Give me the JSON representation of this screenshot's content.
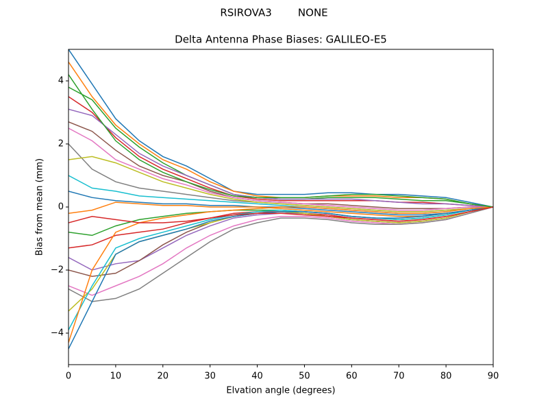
{
  "chart_data": {
    "type": "line",
    "suptitle": "RSIROVA3        NONE",
    "title": "Delta Antenna Phase Biases: GALILEO-E5",
    "xlabel": "Elvation angle (degrees)",
    "ylabel": "Bias from mean (mm)",
    "x": [
      0,
      5,
      10,
      15,
      20,
      25,
      30,
      35,
      40,
      45,
      50,
      55,
      60,
      65,
      70,
      75,
      80,
      85,
      90
    ],
    "xlim": [
      0,
      90
    ],
    "xticks": [
      0,
      10,
      20,
      30,
      40,
      50,
      60,
      70,
      80,
      90
    ],
    "ylim": [
      -5,
      5
    ],
    "yticks": [
      {
        "value": -4,
        "label": "−4"
      },
      {
        "value": -2,
        "label": "−2"
      },
      0,
      2,
      4
    ],
    "series": [
      {
        "color": "#1f77b4",
        "values": [
          5.0,
          3.9,
          2.8,
          2.1,
          1.6,
          1.3,
          0.9,
          0.5,
          0.4,
          0.4,
          0.4,
          0.45,
          0.45,
          0.4,
          0.4,
          0.35,
          0.3,
          0.15,
          0
        ]
      },
      {
        "color": "#ff7f0e",
        "values": [
          4.6,
          3.5,
          2.6,
          2.0,
          1.5,
          1.2,
          0.8,
          0.5,
          0.35,
          0.3,
          0.3,
          0.35,
          0.35,
          0.35,
          0.3,
          0.3,
          0.25,
          0.1,
          0
        ]
      },
      {
        "color": "#2ca02c",
        "values": [
          3.8,
          3.4,
          2.5,
          1.9,
          1.4,
          1.0,
          0.7,
          0.4,
          0.3,
          0.25,
          0.25,
          0.3,
          0.3,
          0.3,
          0.25,
          0.2,
          0.2,
          0.1,
          0
        ]
      },
      {
        "color": "#d62728",
        "values": [
          3.5,
          3.0,
          2.2,
          1.6,
          1.2,
          0.9,
          0.6,
          0.35,
          0.25,
          0.2,
          0.2,
          0.2,
          0.2,
          0.2,
          0.15,
          0.15,
          0.1,
          0.05,
          0
        ]
      },
      {
        "color": "#9467bd",
        "values": [
          3.1,
          2.9,
          2.3,
          1.7,
          1.3,
          1.0,
          0.7,
          0.4,
          0.3,
          0.25,
          0.25,
          0.25,
          0.25,
          0.2,
          0.15,
          0.1,
          0.1,
          0.05,
          0
        ]
      },
      {
        "color": "#8c564b",
        "values": [
          2.7,
          2.4,
          1.8,
          1.3,
          1.0,
          0.8,
          0.5,
          0.3,
          0.2,
          0.15,
          0.1,
          0.1,
          0.05,
          0.0,
          -0.05,
          -0.05,
          -0.05,
          0,
          0
        ]
      },
      {
        "color": "#e377c2",
        "values": [
          2.5,
          2.1,
          1.5,
          1.2,
          0.9,
          0.7,
          0.45,
          0.3,
          0.2,
          0.15,
          0.1,
          0.05,
          0,
          -0.05,
          -0.1,
          -0.1,
          -0.05,
          0,
          0
        ]
      },
      {
        "color": "#7f7f7f",
        "values": [
          2.0,
          1.2,
          0.8,
          0.6,
          0.5,
          0.4,
          0.3,
          0.2,
          0.15,
          0.1,
          0.05,
          0,
          -0.05,
          -0.1,
          -0.15,
          -0.15,
          -0.1,
          -0.05,
          0
        ]
      },
      {
        "color": "#bcbd22",
        "values": [
          1.5,
          1.6,
          1.4,
          1.1,
          0.8,
          0.6,
          0.4,
          0.25,
          0.15,
          0.1,
          0.05,
          0,
          -0.05,
          -0.1,
          -0.15,
          -0.15,
          -0.1,
          -0.05,
          0
        ]
      },
      {
        "color": "#17becf",
        "values": [
          1.0,
          0.6,
          0.5,
          0.35,
          0.3,
          0.25,
          0.2,
          0.15,
          0.1,
          0.05,
          0,
          -0.05,
          -0.1,
          -0.15,
          -0.2,
          -0.2,
          -0.15,
          -0.05,
          0
        ]
      },
      {
        "color": "#1f77b4",
        "values": [
          0.5,
          0.3,
          0.2,
          0.15,
          0.1,
          0.1,
          0.05,
          0.05,
          0,
          0,
          -0.05,
          -0.1,
          -0.15,
          -0.2,
          -0.25,
          -0.25,
          -0.2,
          -0.1,
          0
        ]
      },
      {
        "color": "#ff7f0e",
        "values": [
          -0.2,
          -0.1,
          0.15,
          0.1,
          0.05,
          0.05,
          0,
          0,
          0,
          -0.05,
          -0.1,
          -0.15,
          -0.2,
          -0.25,
          -0.3,
          -0.3,
          -0.2,
          -0.1,
          0
        ]
      },
      {
        "color": "#2ca02c",
        "values": [
          -0.8,
          -0.9,
          -0.6,
          -0.4,
          -0.3,
          -0.2,
          -0.15,
          -0.1,
          -0.1,
          -0.1,
          -0.15,
          -0.2,
          -0.3,
          -0.35,
          -0.4,
          -0.35,
          -0.25,
          -0.1,
          0
        ]
      },
      {
        "color": "#d62728",
        "values": [
          -1.3,
          -1.2,
          -0.9,
          -0.8,
          -0.7,
          -0.5,
          -0.35,
          -0.2,
          -0.15,
          -0.15,
          -0.2,
          -0.25,
          -0.35,
          -0.4,
          -0.45,
          -0.4,
          -0.3,
          -0.15,
          0
        ]
      },
      {
        "color": "#9467bd",
        "values": [
          -1.6,
          -2.0,
          -1.8,
          -1.7,
          -1.3,
          -0.9,
          -0.6,
          -0.35,
          -0.25,
          -0.2,
          -0.2,
          -0.3,
          -0.4,
          -0.45,
          -0.5,
          -0.45,
          -0.35,
          -0.15,
          0
        ]
      },
      {
        "color": "#8c564b",
        "values": [
          -2.0,
          -2.2,
          -2.1,
          -1.7,
          -1.2,
          -0.8,
          -0.5,
          -0.3,
          -0.2,
          -0.15,
          -0.2,
          -0.3,
          -0.4,
          -0.45,
          -0.5,
          -0.45,
          -0.35,
          -0.15,
          0
        ]
      },
      {
        "color": "#e377c2",
        "values": [
          -2.5,
          -2.8,
          -2.5,
          -2.2,
          -1.8,
          -1.3,
          -0.9,
          -0.6,
          -0.4,
          -0.3,
          -0.3,
          -0.35,
          -0.45,
          -0.5,
          -0.55,
          -0.5,
          -0.4,
          -0.2,
          0
        ]
      },
      {
        "color": "#7f7f7f",
        "values": [
          -2.6,
          -3.0,
          -2.9,
          -2.6,
          -2.1,
          -1.6,
          -1.1,
          -0.7,
          -0.5,
          -0.35,
          -0.35,
          -0.4,
          -0.5,
          -0.55,
          -0.55,
          -0.5,
          -0.4,
          -0.2,
          0
        ]
      },
      {
        "color": "#bcbd22",
        "values": [
          -3.3,
          -2.6,
          -1.5,
          -1.1,
          -0.9,
          -0.7,
          -0.5,
          -0.3,
          -0.2,
          -0.15,
          -0.2,
          -0.3,
          -0.4,
          -0.45,
          -0.5,
          -0.45,
          -0.35,
          -0.15,
          0
        ]
      },
      {
        "color": "#17becf",
        "values": [
          -3.9,
          -2.5,
          -1.3,
          -1.0,
          -0.8,
          -0.6,
          -0.4,
          -0.25,
          -0.15,
          -0.1,
          -0.15,
          -0.2,
          -0.3,
          -0.35,
          -0.4,
          -0.35,
          -0.25,
          -0.1,
          0
        ]
      },
      {
        "color": "#1f77b4",
        "values": [
          -4.5,
          -3.0,
          -1.5,
          -1.1,
          -0.9,
          -0.7,
          -0.45,
          -0.3,
          -0.2,
          -0.15,
          -0.15,
          -0.2,
          -0.3,
          -0.35,
          -0.35,
          -0.3,
          -0.2,
          -0.1,
          0
        ]
      },
      {
        "color": "#ff7f0e",
        "values": [
          -4.3,
          -2.0,
          -0.8,
          -0.5,
          -0.35,
          -0.25,
          -0.15,
          -0.1,
          -0.05,
          0,
          0,
          -0.05,
          -0.1,
          -0.15,
          -0.2,
          -0.2,
          -0.15,
          -0.05,
          0
        ]
      },
      {
        "color": "#2ca02c",
        "values": [
          4.2,
          3.1,
          2.1,
          1.5,
          1.1,
          0.8,
          0.55,
          0.35,
          0.3,
          0.3,
          0.3,
          0.35,
          0.4,
          0.4,
          0.35,
          0.3,
          0.25,
          0.1,
          0
        ]
      },
      {
        "color": "#d62728",
        "values": [
          -0.5,
          -0.3,
          -0.4,
          -0.5,
          -0.5,
          -0.45,
          -0.35,
          -0.25,
          -0.2,
          -0.2,
          -0.25,
          -0.3,
          -0.35,
          -0.4,
          -0.45,
          -0.4,
          -0.3,
          -0.15,
          0
        ]
      }
    ]
  }
}
